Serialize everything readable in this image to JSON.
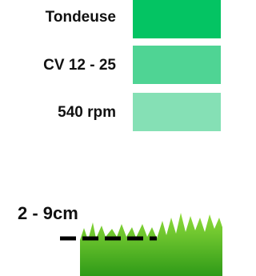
{
  "specs": [
    "Tondeuse",
    "CV 12 - 25",
    "540 rpm"
  ],
  "cut_height": "2 - 9cm"
}
